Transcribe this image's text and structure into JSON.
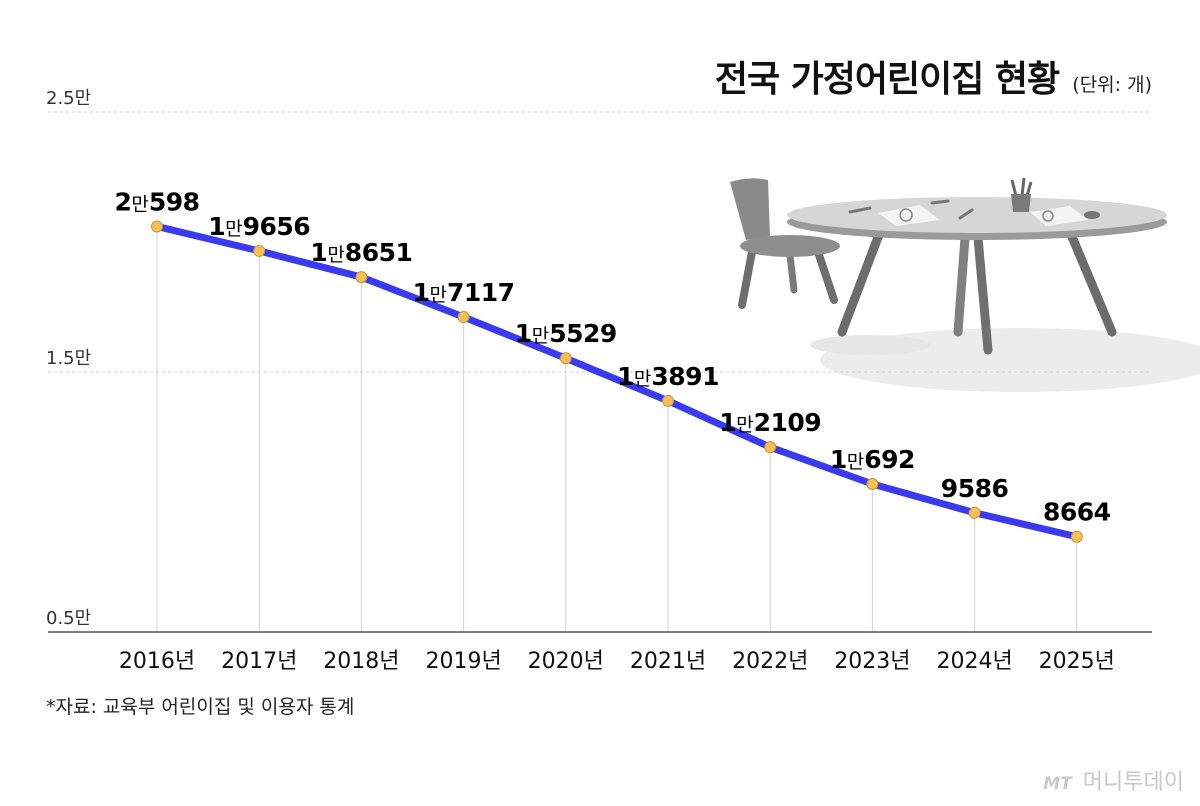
{
  "title": "전국 가정어린이집 현황",
  "unit": "(단위: 개)",
  "source": "*자료: 교육부 어린이집 및 이용자 통계",
  "brand": {
    "mark": "MT",
    "name": "머니투데이"
  },
  "chart_data": {
    "type": "line",
    "categories": [
      "2016년",
      "2017년",
      "2018년",
      "2019년",
      "2020년",
      "2021년",
      "2022년",
      "2023년",
      "2024년",
      "2025년"
    ],
    "values": [
      20598,
      19656,
      18651,
      17117,
      15529,
      13891,
      12109,
      10692,
      9586,
      8664
    ],
    "data_labels": [
      [
        [
          "2",
          "big"
        ],
        [
          "만",
          "small"
        ],
        [
          "598",
          "big"
        ]
      ],
      [
        [
          "1",
          "big"
        ],
        [
          "만",
          "small"
        ],
        [
          "9656",
          "big"
        ]
      ],
      [
        [
          "1",
          "big"
        ],
        [
          "만",
          "small"
        ],
        [
          "8651",
          "big"
        ]
      ],
      [
        [
          "1",
          "big"
        ],
        [
          "만",
          "small"
        ],
        [
          "7117",
          "big"
        ]
      ],
      [
        [
          "1",
          "big"
        ],
        [
          "만",
          "small"
        ],
        [
          "5529",
          "big"
        ]
      ],
      [
        [
          "1",
          "big"
        ],
        [
          "만",
          "small"
        ],
        [
          "3891",
          "big"
        ]
      ],
      [
        [
          "1",
          "big"
        ],
        [
          "만",
          "small"
        ],
        [
          "2109",
          "big"
        ]
      ],
      [
        [
          "1",
          "big"
        ],
        [
          "만",
          "small"
        ],
        [
          "692",
          "big"
        ]
      ],
      [
        [
          "9586",
          "big"
        ]
      ],
      [
        [
          "8664",
          "big"
        ]
      ]
    ],
    "yticks": [
      {
        "value": 25000,
        "label": "2.5만"
      },
      {
        "value": 15000,
        "label": "1.5만"
      },
      {
        "value": 5000,
        "label": "0.5만"
      }
    ],
    "ylim": [
      5000,
      25000
    ],
    "line_color": "#3a3af0",
    "marker_color": "#f5c054"
  }
}
